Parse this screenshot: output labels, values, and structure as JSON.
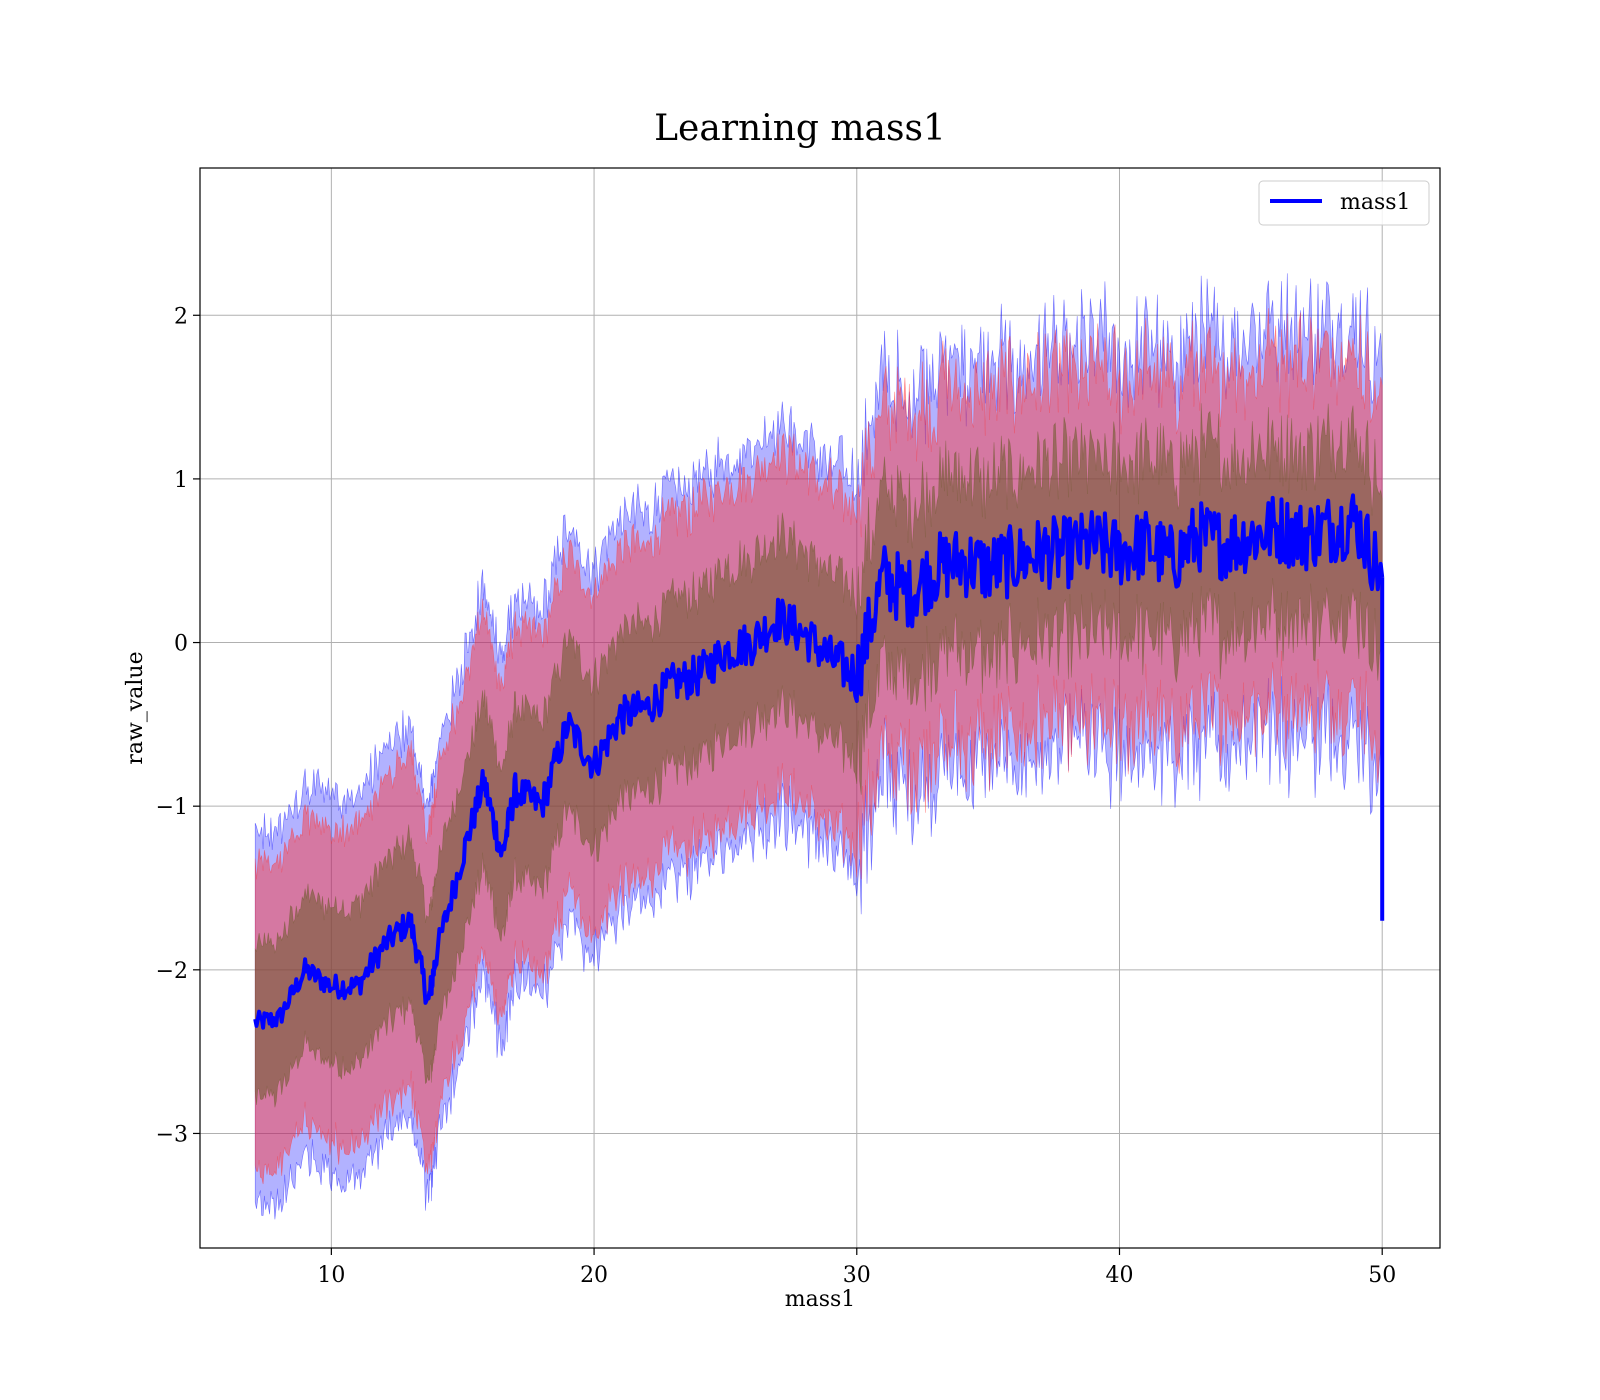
{
  "chart_data": {
    "type": "line",
    "title": "Learning mass1",
    "xlabel": "mass1",
    "ylabel": "raw_value",
    "xlim": [
      5,
      52.2
    ],
    "ylim": [
      -3.7,
      2.9
    ],
    "xticks": [
      10,
      20,
      30,
      40,
      50
    ],
    "xtick_labels": [
      "10",
      "20",
      "30",
      "40",
      "50"
    ],
    "yticks": [
      -3,
      -2,
      -1,
      0,
      1,
      2
    ],
    "ytick_labels": [
      "−3",
      "−2",
      "−1",
      "0",
      "1",
      "2"
    ],
    "grid": true,
    "legend": {
      "position": "top-right",
      "entries": [
        "mass1"
      ]
    },
    "colors": {
      "line": "#0000ff",
      "band_outer": "#0000ff",
      "band_middle": "#ff3030",
      "band_inner": "#6b5a2a",
      "grid": "#b0b0b0"
    },
    "series": [
      {
        "name": "mass1",
        "x": [
          7.1,
          8,
          9,
          10,
          11,
          12,
          13,
          13.7,
          14,
          15,
          15.8,
          16.5,
          17,
          18,
          19,
          20,
          21,
          22,
          23,
          24,
          25,
          26,
          27,
          28,
          29,
          30,
          31,
          32,
          33,
          34,
          35,
          36,
          37,
          38,
          39,
          40,
          41,
          42,
          43,
          44,
          45,
          46,
          47,
          48,
          49,
          50
        ],
        "y": [
          -2.32,
          -2.3,
          -2.0,
          -2.1,
          -2.1,
          -1.85,
          -1.7,
          -2.2,
          -1.9,
          -1.3,
          -0.85,
          -1.3,
          -0.9,
          -1.0,
          -0.5,
          -0.75,
          -0.45,
          -0.4,
          -0.25,
          -0.2,
          -0.05,
          0.0,
          0.15,
          0.05,
          -0.1,
          -0.2,
          0.4,
          0.3,
          0.45,
          0.5,
          0.45,
          0.5,
          0.55,
          0.55,
          0.6,
          0.55,
          0.6,
          0.5,
          0.65,
          0.6,
          0.65,
          0.7,
          0.65,
          0.7,
          0.75,
          0.4
        ],
        "band_inner_halfwidth": [
          0.45,
          0.45,
          0.45,
          0.46,
          0.47,
          0.48,
          0.49,
          0.5,
          0.5,
          0.5,
          0.5,
          0.5,
          0.5,
          0.5,
          0.5,
          0.5,
          0.5,
          0.5,
          0.5,
          0.5,
          0.5,
          0.5,
          0.5,
          0.5,
          0.5,
          0.5,
          0.5,
          0.5,
          0.5,
          0.5,
          0.5,
          0.5,
          0.5,
          0.5,
          0.5,
          0.5,
          0.5,
          0.5,
          0.5,
          0.5,
          0.5,
          0.5,
          0.5,
          0.5,
          0.5,
          0.5
        ],
        "band_middle_halfwidth": [
          0.9,
          0.9,
          0.9,
          0.92,
          0.94,
          0.96,
          0.98,
          1.0,
          1.0,
          1.0,
          1.0,
          1.0,
          1.0,
          1.0,
          1.0,
          1.0,
          1.0,
          1.0,
          1.0,
          1.0,
          1.0,
          1.0,
          1.0,
          1.0,
          1.0,
          1.0,
          1.0,
          1.0,
          1.0,
          1.0,
          1.0,
          1.0,
          1.0,
          1.0,
          1.0,
          1.0,
          1.0,
          1.0,
          1.0,
          1.0,
          1.0,
          1.0,
          1.0,
          1.0,
          1.0,
          1.0
        ],
        "band_outer_halfwidth": [
          1.1,
          1.1,
          1.1,
          1.12,
          1.13,
          1.14,
          1.15,
          1.15,
          1.15,
          1.15,
          1.15,
          1.15,
          1.15,
          1.15,
          1.15,
          1.15,
          1.15,
          1.15,
          1.15,
          1.15,
          1.15,
          1.15,
          1.15,
          1.15,
          1.15,
          1.15,
          1.15,
          1.15,
          1.15,
          1.15,
          1.15,
          1.15,
          1.15,
          1.15,
          1.15,
          1.15,
          1.15,
          1.15,
          1.15,
          1.15,
          1.15,
          1.15,
          1.15,
          1.15,
          1.15,
          1.15
        ]
      }
    ],
    "annotations": [
      {
        "x": 50,
        "y": -1.7,
        "text": ""
      }
    ]
  }
}
